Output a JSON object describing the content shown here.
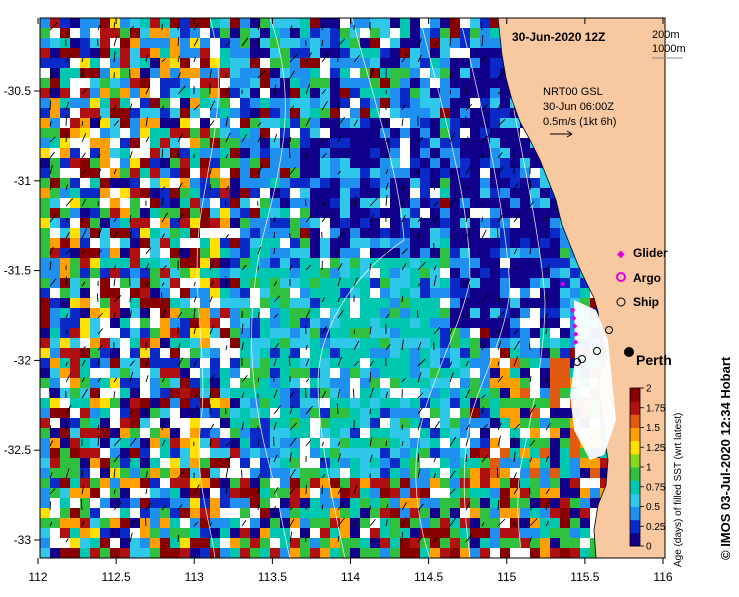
{
  "map": {
    "date_title": "30-Jun-2020 12Z",
    "contour_labels": [
      "200m",
      "1000m"
    ],
    "current_source": "NRT00 GSL",
    "current_time": "30-Jun 06:00Z",
    "current_scale": "0.5m/s (1kt 6h)",
    "city": "Perth",
    "copyright": "©  IMOS 03-Jul-2020 12:34 Hobart"
  },
  "legend": {
    "glider": "Glider",
    "argo": "Argo",
    "ship": "Ship",
    "glider_color": "#e000e0",
    "argo_color": "#e000e0"
  },
  "colorbar": {
    "label": "Age (days) of filled SST (wrt latest)",
    "ticks": [
      "2",
      "1.75",
      "1.5",
      "1.25",
      "1",
      "0.75",
      "0.5",
      "0.25",
      "0"
    ],
    "colors": [
      "#10008a",
      "#0a2ac8",
      "#2090f0",
      "#30c8e8",
      "#00c8b0",
      "#30c040",
      "#88d820",
      "#ffe000",
      "#ffa000",
      "#e05a10",
      "#b01010",
      "#880000"
    ]
  },
  "axes": {
    "x_ticks": [
      "112",
      "112.5",
      "113",
      "113.5",
      "114",
      "114.5",
      "115",
      "115.5",
      "116"
    ],
    "y_ticks": [
      "-30.5",
      "-31",
      "-31.5",
      "-32",
      "-32.5",
      "-33"
    ]
  },
  "colors": {
    "land": "#f8c8a0",
    "missing": "#ffffff"
  }
}
